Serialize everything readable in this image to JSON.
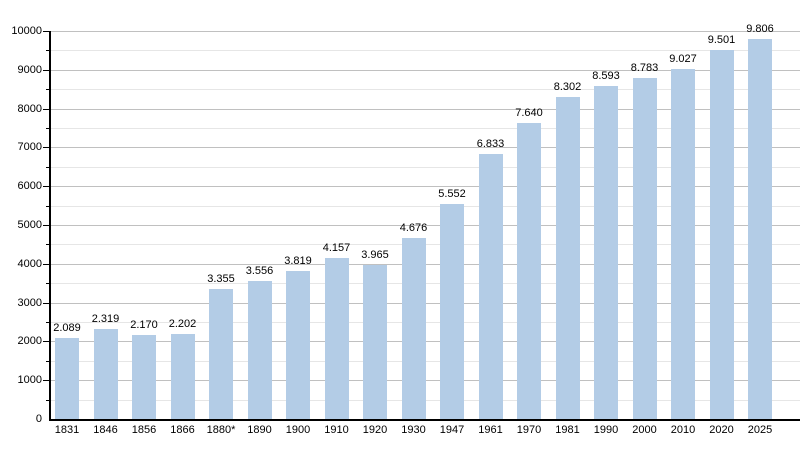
{
  "chart_data": {
    "type": "bar",
    "title": "",
    "subtitle": "",
    "xlabel": "",
    "ylabel": "",
    "legend": "none",
    "grid": "horizontal",
    "categories": [
      "1831",
      "1846",
      "1856",
      "1866",
      "1880*",
      "1890",
      "1900",
      "1910",
      "1920",
      "1930",
      "1947",
      "1961",
      "1970",
      "1981",
      "1990",
      "2000",
      "2010",
      "2020",
      "2025"
    ],
    "values": [
      2089,
      2319,
      2170,
      2202,
      3355,
      3556,
      3819,
      4157,
      3965,
      4676,
      5552,
      6833,
      7640,
      8302,
      8593,
      8783,
      9027,
      9501,
      9806
    ],
    "value_labels": [
      "2.089",
      "2.319",
      "2.170",
      "2.202",
      "3.355",
      "3.556",
      "3.819",
      "4.157",
      "3.965",
      "4.676",
      "5.552",
      "6.833",
      "7.640",
      "8.302",
      "8.593",
      "8.783",
      "9.027",
      "9.501",
      "9.806"
    ],
    "ylim": [
      0,
      10000
    ],
    "y_major_ticks": [
      0,
      1000,
      2000,
      3000,
      4000,
      5000,
      6000,
      7000,
      8000,
      9000,
      10000
    ],
    "y_major_tick_labels": [
      "0",
      "1000",
      "2000",
      "3000",
      "4000",
      "5000",
      "6000",
      "7000",
      "8000",
      "9000",
      "10000"
    ],
    "y_minor_step": 500,
    "colors": {
      "bar_fill": "#b3cce6",
      "major_gridline": "#c0c0c0",
      "minor_gridline": "#e6e6e6",
      "axis": "#000000",
      "tick": "#000000",
      "text": "#000000",
      "background": "#ffffff"
    }
  }
}
